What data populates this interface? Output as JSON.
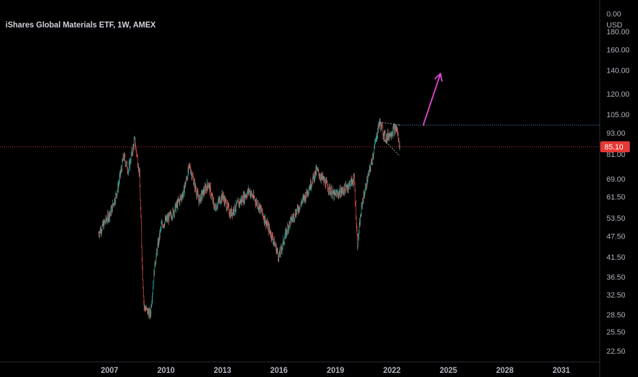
{
  "header": {
    "title": "iShares Global Materials ETF, 1W, AMEX",
    "currency": "USD"
  },
  "colors": {
    "background": "#000000",
    "up": "#26a69a",
    "down": "#ef5350",
    "text": "#b2b5be",
    "current_price": "#e53935",
    "resistance_line": "#5b9bd5",
    "arrow": "#d946c8",
    "wedge": "#cccccc"
  },
  "chart_data": {
    "type": "candlestick",
    "title": "iShares Global Materials ETF, 1W, AMEX",
    "y_scale": "log",
    "y_axis_side": "right",
    "y_ticks": [
      "0.00",
      "180.00",
      "160.00",
      "140.00",
      "120.00",
      "105.00",
      "93.00",
      "81.00",
      "69.00",
      "61.50",
      "53.50",
      "47.50",
      "41.50",
      "36.50",
      "32.50",
      "28.50",
      "25.50",
      "22.50"
    ],
    "x_ticks": [
      "2007",
      "2010",
      "2013",
      "2016",
      "2019",
      "2022",
      "2025",
      "2028",
      "2031"
    ],
    "current_price": 85.1,
    "current_price_label": "85.10",
    "series_points": [
      {
        "date": "2006-06",
        "price": 48.5
      },
      {
        "date": "2006-10",
        "price": 52
      },
      {
        "date": "2007-02",
        "price": 56
      },
      {
        "date": "2007-06",
        "price": 64
      },
      {
        "date": "2007-10",
        "price": 80
      },
      {
        "date": "2008-01",
        "price": 73
      },
      {
        "date": "2008-05",
        "price": 89
      },
      {
        "date": "2008-08",
        "price": 72
      },
      {
        "date": "2008-10",
        "price": 38
      },
      {
        "date": "2008-11",
        "price": 30
      },
      {
        "date": "2009-03",
        "price": 28.5
      },
      {
        "date": "2009-06",
        "price": 40
      },
      {
        "date": "2009-10",
        "price": 51
      },
      {
        "date": "2010-05",
        "price": 55
      },
      {
        "date": "2010-12",
        "price": 63
      },
      {
        "date": "2011-04",
        "price": 75
      },
      {
        "date": "2011-10",
        "price": 60
      },
      {
        "date": "2012-04",
        "price": 67
      },
      {
        "date": "2012-08",
        "price": 57
      },
      {
        "date": "2013-01",
        "price": 62
      },
      {
        "date": "2013-06",
        "price": 55
      },
      {
        "date": "2014-06",
        "price": 64
      },
      {
        "date": "2015-01",
        "price": 57
      },
      {
        "date": "2015-09",
        "price": 47
      },
      {
        "date": "2016-01",
        "price": 41.5
      },
      {
        "date": "2016-07",
        "price": 51
      },
      {
        "date": "2017-06",
        "price": 62
      },
      {
        "date": "2018-01",
        "price": 73
      },
      {
        "date": "2018-12",
        "price": 62
      },
      {
        "date": "2019-06",
        "price": 64
      },
      {
        "date": "2020-01",
        "price": 69
      },
      {
        "date": "2020-03",
        "price": 45
      },
      {
        "date": "2020-06",
        "price": 59
      },
      {
        "date": "2020-12",
        "price": 77
      },
      {
        "date": "2021-05",
        "price": 100
      },
      {
        "date": "2021-09",
        "price": 90
      },
      {
        "date": "2022-01",
        "price": 94
      },
      {
        "date": "2022-04",
        "price": 96
      },
      {
        "date": "2022-06",
        "price": 85.1
      }
    ],
    "annotations": {
      "resistance_level": 98,
      "resistance_from": "2022-02",
      "arrow": {
        "from_date": "2023-09",
        "from_price": 98,
        "to_date": "2024-08",
        "to_price": 137
      },
      "wedge": {
        "upper": [
          {
            "date": "2021-05",
            "price": 100
          },
          {
            "date": "2022-06",
            "price": 98
          }
        ],
        "lower": [
          {
            "date": "2021-07",
            "price": 90
          },
          {
            "date": "2022-06",
            "price": 80
          }
        ]
      }
    },
    "grid": false,
    "legend": "none"
  }
}
